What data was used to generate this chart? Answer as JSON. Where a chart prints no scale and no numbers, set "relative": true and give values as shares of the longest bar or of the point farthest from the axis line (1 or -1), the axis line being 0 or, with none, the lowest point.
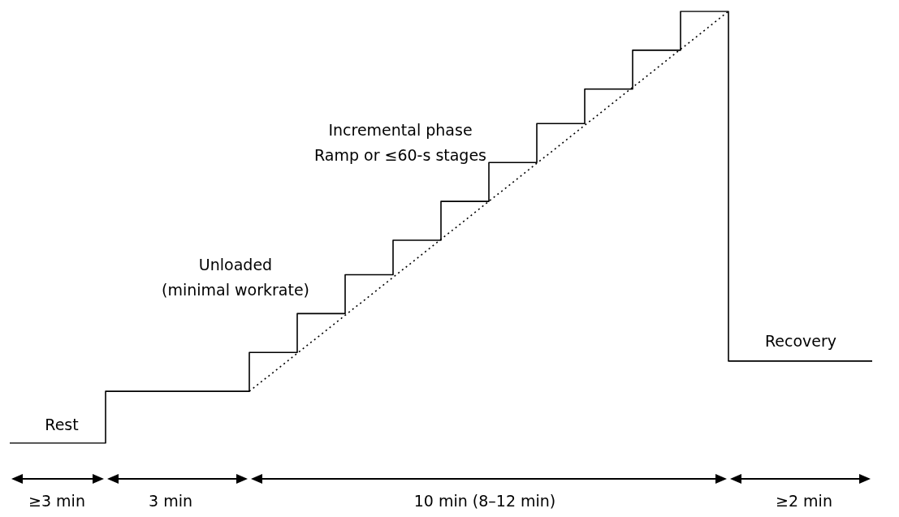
{
  "chart_data": {
    "type": "step",
    "relative": true,
    "categories": [
      null,
      null,
      null,
      null,
      null,
      null,
      null,
      null,
      null,
      null,
      null,
      null,
      null,
      null,
      null,
      null,
      null,
      null,
      null
    ],
    "series": [
      {
        "color": "#000000",
        "values": [
          0,
          0,
          0.12,
          0.12,
          0.12,
          0.21,
          0.3,
          0.39,
          0.47,
          0.56,
          0.65,
          0.74,
          0.82,
          0.91,
          1,
          0.19,
          0.19,
          0.19,
          0.19
        ]
      },
      {
        "type": "line",
        "color": "#000000",
        "line_style": "dotted",
        "values": [
          null,
          null,
          null,
          null,
          null,
          0.12,
          null,
          null,
          null,
          null,
          null,
          null,
          null,
          null,
          null,
          1,
          null,
          null,
          null
        ]
      }
    ],
    "annotations": [
      "Rest",
      "Unloaded\n(minimal workrate)",
      "Incremental phase\nRamp or ≤60-s stages",
      "Recovery",
      "≥3 min",
      "3 min",
      "10 min (8–12 min)",
      "≥2 min"
    ]
  }
}
